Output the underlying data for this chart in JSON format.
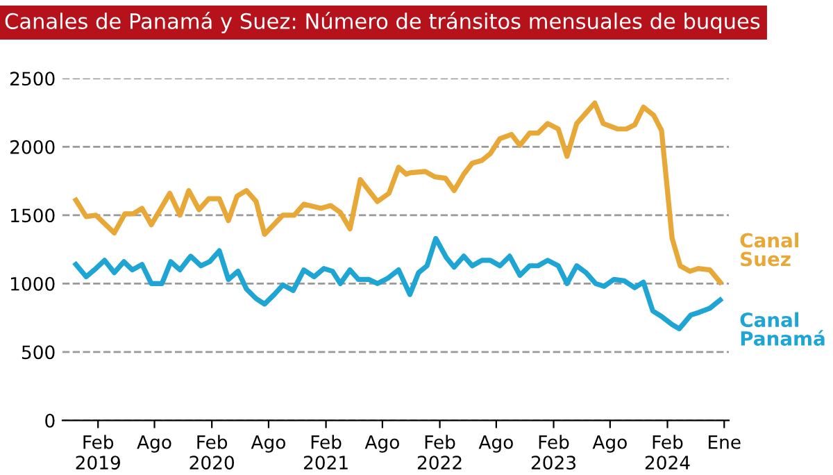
{
  "chart_data": {
    "type": "line",
    "title": "Canales de Panamá y Suez: Número de tránsitos mensuales de buques",
    "xlim": [
      "2018-10-10",
      "2024-08-16"
    ],
    "xticks": [
      {
        "value": "2019-02-01",
        "label": "Feb\n2019"
      },
      {
        "value": "2019-08-01",
        "label": "Ago"
      },
      {
        "value": "2020-02-01",
        "label": "Feb\n2020"
      },
      {
        "value": "2020-08-01",
        "label": "Ago"
      },
      {
        "value": "2021-02-01",
        "label": "Feb\n2021"
      },
      {
        "value": "2021-08-01",
        "label": "Ago"
      },
      {
        "value": "2022-02-01",
        "label": "Feb\n2022"
      },
      {
        "value": "2022-08-01",
        "label": "Ago"
      },
      {
        "value": "2023-02-01",
        "label": "Feb\n2023"
      },
      {
        "value": "2023-08-01",
        "label": "Ago"
      },
      {
        "value": "2024-02-01",
        "label": "Feb\n2024"
      },
      {
        "value": "2024-08-01",
        "label": "Ene"
      }
    ],
    "ylim": [
      0,
      2500
    ],
    "yticks": [
      0,
      500,
      1000,
      1500,
      2000,
      2500
    ],
    "grid": "y",
    "legend": false,
    "line_style": "solid",
    "marker": "none",
    "series": [
      {
        "name": "Canal Suez",
        "color": "#e8a838",
        "x": [
          "2018-11-22",
          "2018-12-25",
          "2019-01-25",
          "2019-03-25",
          "2019-04-28",
          "2019-05-25",
          "2019-06-22",
          "2019-07-22",
          "2019-09-19",
          "2019-10-22",
          "2019-11-19",
          "2019-12-22",
          "2020-01-22",
          "2020-02-25",
          "2020-03-25",
          "2020-04-22",
          "2020-05-22",
          "2020-06-22",
          "2020-07-19",
          "2020-09-16",
          "2020-10-22",
          "2020-11-22",
          "2021-01-16",
          "2021-02-16",
          "2021-03-19",
          "2021-04-19",
          "2021-05-22",
          "2021-07-16",
          "2021-08-22",
          "2021-09-22",
          "2021-10-16",
          "2021-10-28",
          "2021-12-16",
          "2022-01-16",
          "2022-02-19",
          "2022-03-19",
          "2022-04-19",
          "2022-05-16",
          "2022-06-16",
          "2022-07-13",
          "2022-08-13",
          "2022-09-19",
          "2022-10-16",
          "2022-11-16",
          "2022-12-13",
          "2023-01-13",
          "2023-02-16",
          "2023-03-16",
          "2023-04-16",
          "2023-05-13",
          "2023-06-13",
          "2023-07-10",
          "2023-08-25",
          "2023-09-22",
          "2023-10-19",
          "2023-11-16",
          "2023-12-19",
          "2024-01-13",
          "2024-02-01",
          "2024-02-16",
          "2024-03-13",
          "2024-04-13",
          "2024-05-10",
          "2024-06-16",
          "2024-07-19"
        ],
        "values": [
          1610,
          1490,
          1500,
          1370,
          1510,
          1510,
          1550,
          1430,
          1660,
          1500,
          1680,
          1540,
          1620,
          1620,
          1460,
          1640,
          1680,
          1600,
          1360,
          1500,
          1500,
          1580,
          1550,
          1570,
          1520,
          1400,
          1760,
          1600,
          1660,
          1850,
          1800,
          1810,
          1820,
          1780,
          1770,
          1680,
          1800,
          1880,
          1900,
          1950,
          2060,
          2090,
          2010,
          2100,
          2100,
          2170,
          2130,
          1930,
          2170,
          2240,
          2320,
          2170,
          2130,
          2130,
          2160,
          2290,
          2230,
          2120,
          1680,
          1330,
          1130,
          1090,
          1110,
          1100,
          1010
        ]
      },
      {
        "name": "Canal Panamá",
        "color": "#1ea5d3",
        "x": [
          "2018-11-22",
          "2018-12-25",
          "2019-01-25",
          "2019-02-22",
          "2019-03-25",
          "2019-04-25",
          "2019-05-22",
          "2019-06-22",
          "2019-07-22",
          "2019-08-25",
          "2019-09-22",
          "2019-10-22",
          "2019-11-25",
          "2019-12-28",
          "2020-01-25",
          "2020-02-25",
          "2020-03-25",
          "2020-04-25",
          "2020-05-22",
          "2020-06-22",
          "2020-07-19",
          "2020-08-19",
          "2020-09-16",
          "2020-10-19",
          "2020-11-22",
          "2020-12-25",
          "2021-01-25",
          "2021-02-22",
          "2021-03-19",
          "2021-04-19",
          "2021-05-16",
          "2021-06-19",
          "2021-07-16",
          "2021-08-19",
          "2021-09-22",
          "2021-10-28",
          "2021-11-25",
          "2021-12-22",
          "2022-01-19",
          "2022-02-22",
          "2022-03-19",
          "2022-04-19",
          "2022-05-16",
          "2022-06-16",
          "2022-07-13",
          "2022-08-13",
          "2022-09-13",
          "2022-10-16",
          "2022-11-16",
          "2022-12-13",
          "2023-01-13",
          "2023-02-16",
          "2023-03-16",
          "2023-04-16",
          "2023-05-16",
          "2023-06-16",
          "2023-07-13",
          "2023-08-13",
          "2023-09-16",
          "2023-10-19",
          "2023-11-16",
          "2023-12-16",
          "2024-01-13",
          "2024-02-16",
          "2024-03-10",
          "2024-04-16",
          "2024-05-13",
          "2024-06-16",
          "2024-07-19"
        ],
        "values": [
          1140,
          1050,
          1110,
          1170,
          1080,
          1160,
          1100,
          1140,
          1000,
          1000,
          1160,
          1100,
          1200,
          1130,
          1160,
          1240,
          1030,
          1090,
          960,
          890,
          850,
          920,
          990,
          950,
          1100,
          1050,
          1110,
          1090,
          1000,
          1100,
          1030,
          1030,
          1000,
          1040,
          1100,
          920,
          1080,
          1130,
          1330,
          1190,
          1120,
          1200,
          1130,
          1170,
          1170,
          1130,
          1200,
          1060,
          1130,
          1130,
          1170,
          1130,
          1000,
          1130,
          1080,
          1000,
          980,
          1030,
          1020,
          970,
          1010,
          800,
          760,
          700,
          670,
          770,
          790,
          820,
          880
        ]
      }
    ]
  }
}
